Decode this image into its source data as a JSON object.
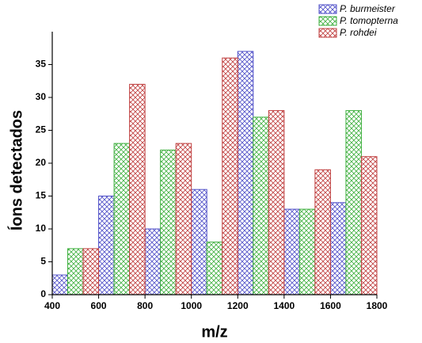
{
  "chart_data": {
    "type": "histogram",
    "x_label": "m/z",
    "y_label": "Íons detectados",
    "bins": [
      400,
      600,
      800,
      1000,
      1200,
      1400,
      1600,
      1800
    ],
    "series": [
      {
        "name": "P. burmeister",
        "color": "#5050c8",
        "values": [
          3,
          15,
          10,
          16,
          37,
          13,
          14
        ]
      },
      {
        "name": "P. tomopterna",
        "color": "#40b040",
        "values": [
          7,
          23,
          22,
          8,
          27,
          13,
          28
        ]
      },
      {
        "name": "P. rohdei",
        "color": "#c04040",
        "values": [
          7,
          32,
          23,
          36,
          28,
          19,
          21
        ]
      }
    ],
    "xlim": [
      400,
      1800
    ],
    "xticks": [
      400,
      600,
      800,
      1000,
      1200,
      1400,
      1600,
      1800
    ],
    "ylim": [
      0,
      40
    ],
    "yticks": [
      0,
      5,
      10,
      15,
      20,
      25,
      30,
      35
    ],
    "legend": "top-right",
    "grid": false
  }
}
